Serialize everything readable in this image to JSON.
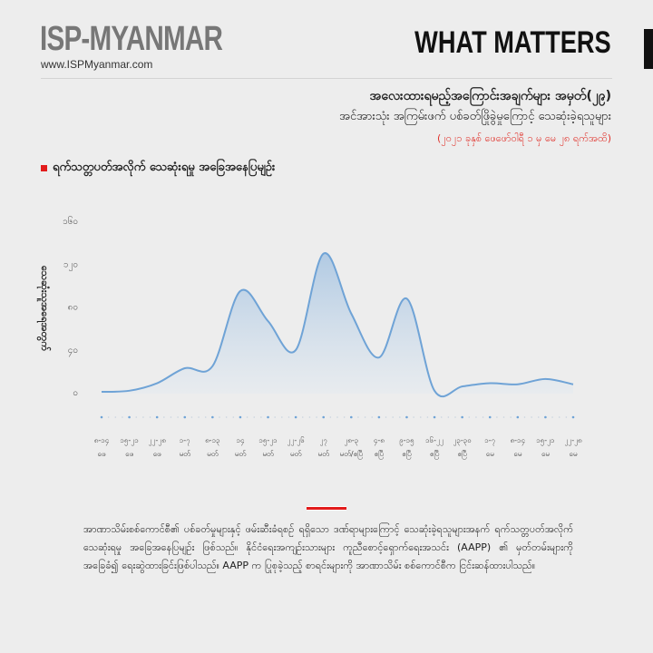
{
  "header": {
    "logo": "ISP-MYANMAR",
    "url": "www.ISPMyanmar.com",
    "series_title": "WHAT MATTERS"
  },
  "title": {
    "line1": "အလေးထားရမည့်အကြောင်းအချက်များ အမှတ်(၂၉)",
    "line2": "အင်အားသုံး အကြမ်းဖက် ပစ်ခတ်ဖြိုခွဲမှုကြောင့် သေဆုံးခဲ့ရသူများ",
    "period": "(၂၀၂၁ ခုနှစ် ဖေဖော်ဝါရီ ၁ မှ မေ ၂၈ ရက်အထိ)"
  },
  "section_heading": "ရက်သတ္တပတ်အလိုက် သေဆုံးရမှု အခြေအနေပြမျဉ်း",
  "colors": {
    "accent": "#e21b1b",
    "line": "#6fa3d6",
    "fill": "#b6cfe6"
  },
  "chart_data": {
    "type": "area",
    "ylabel": "သေဆုံးသူအရေအတွက်",
    "ylim": [
      0,
      160
    ],
    "yticks": [
      "၀",
      "၄၀",
      "၈၀",
      "၁၂၀",
      "၁၆၀"
    ],
    "ytick_values": [
      0,
      40,
      80,
      120,
      160
    ],
    "categories": [
      {
        "days": "၈-၁၄",
        "month": "ဖေ"
      },
      {
        "days": "၁၅-၂၁",
        "month": "ဖေ"
      },
      {
        "days": "၂၂-၂၈",
        "month": "ဖေ"
      },
      {
        "days": "၁-၇",
        "month": "မတ်"
      },
      {
        "days": "၈-၁၃",
        "month": "မတ်"
      },
      {
        "days": "၁၄",
        "month": "မတ်"
      },
      {
        "days": "၁၅-၂၁",
        "month": "မတ်"
      },
      {
        "days": "၂၂-၂၆",
        "month": "မတ်"
      },
      {
        "days": "၂၇",
        "month": "မတ်"
      },
      {
        "days": "၂၈-၃",
        "month": "မတ်/ဧပြီ"
      },
      {
        "days": "၄-၈",
        "month": "ဧပြီ"
      },
      {
        "days": "၉-၁၅",
        "month": "ဧပြီ"
      },
      {
        "days": "၁၆-၂၂",
        "month": "ဧပြီ"
      },
      {
        "days": "၂၃-၃၀",
        "month": "ဧပြီ"
      },
      {
        "days": "၁-၇",
        "month": "မေ"
      },
      {
        "days": "၈-၁၄",
        "month": "မေ"
      },
      {
        "days": "၁၅-၂၁",
        "month": "မေ"
      },
      {
        "days": "၂၂-၂၈",
        "month": "မေ"
      }
    ],
    "values": [
      0,
      1,
      8,
      22,
      24,
      94,
      66,
      39,
      129,
      73,
      32,
      87,
      1,
      5,
      8,
      7,
      12,
      7
    ]
  },
  "footnote": "အာဏာသိမ်းစစ်ကောင်စီ၏ ပစ်ခတ်မှုများနှင့် ဖမ်းဆီးခံရစဉ် ရရှိသော ဒဏ်ရာများကြောင့် သေဆုံးခဲ့ရသူများအနက် ရက်သတ္တပတ်အလိုက် သေဆုံးရမှု အခြေအနေပြမျဉ်း ဖြစ်သည်။ နိုင်ငံရေးအကျဉ်းသားများ ကူညီစောင့်ရှောက်ရေးအသင်း (AAPP) ၏ မှတ်တမ်းများကို အခြေခံ၍ ရေးဆွဲထားခြင်းဖြစ်ပါသည်။ AAPP က ပြုစုခဲ့သည့် စာရင်းများကို အာဏာသိမ်း စစ်ကောင်စီက ငြင်းဆန်ထားပါသည်။"
}
